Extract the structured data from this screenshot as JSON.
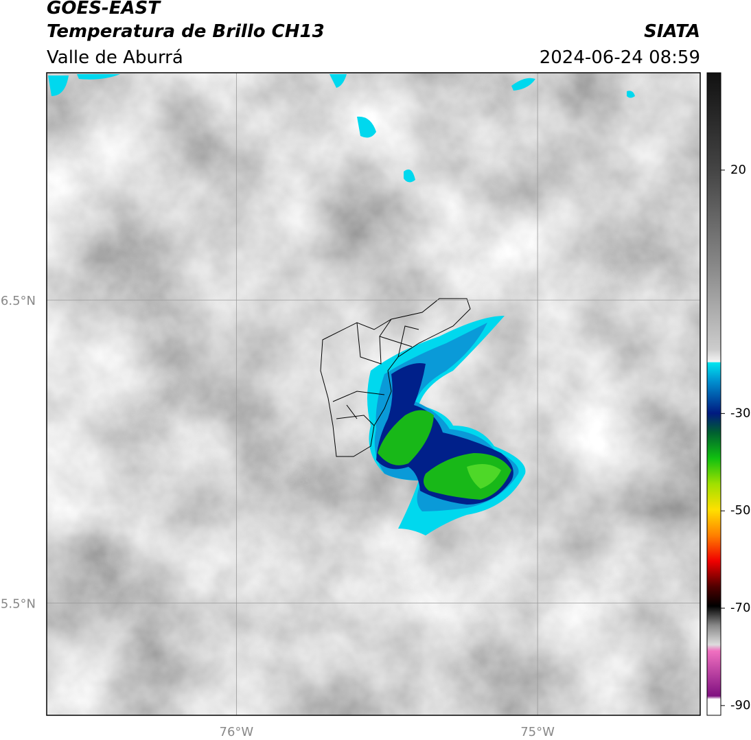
{
  "header": {
    "title": "GOES-EAST",
    "subtitle": "Temperatura de Brillo CH13",
    "region": "Valle de Aburrá",
    "source": "SIATA",
    "datetime": "2024-06-24 08:59"
  },
  "map": {
    "lonlim": [
      -76.63,
      -74.46
    ],
    "latlim": [
      5.13,
      7.25
    ],
    "lon_ticks": [
      {
        "value": -76,
        "label": "76°W"
      },
      {
        "value": -75,
        "label": "75°W"
      }
    ],
    "lat_ticks": [
      {
        "value": 6.5,
        "label": "6.5°N"
      },
      {
        "value": 5.5,
        "label": "5.5°N"
      }
    ]
  },
  "colorbar": {
    "clim": [
      -92,
      40
    ],
    "ticks": [
      20,
      -30,
      -50,
      -70,
      -90
    ]
  }
}
